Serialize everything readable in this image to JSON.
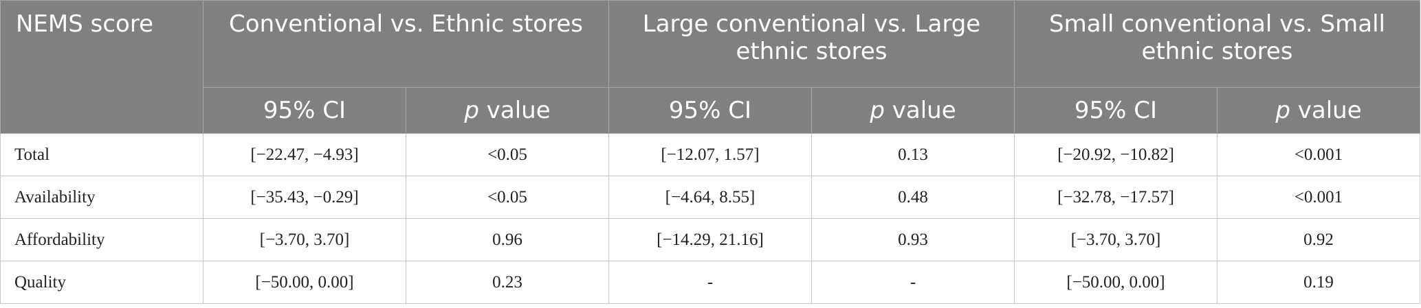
{
  "header": {
    "corner": "NEMS score",
    "groups": [
      "Conventional vs. Ethnic stores",
      "Large conventional vs. Large ethnic stores",
      "Small conventional vs. Small ethnic stores"
    ],
    "subheaders": [
      {
        "text": "95% CI"
      },
      {
        "em": "p",
        "text": "value"
      }
    ]
  },
  "table": {
    "rows": [
      [
        "Total",
        "[−22.47, −4.93]",
        "<0.05",
        "[−12.07, 1.57]",
        "0.13",
        "[−20.92, −10.82]",
        "<0.001"
      ],
      [
        "Availability",
        "[−35.43, −0.29]",
        "<0.05",
        "[−4.64, 8.55]",
        "0.48",
        "[−32.78, −17.57]",
        "<0.001"
      ],
      [
        "Affordability",
        "[−3.70, 3.70]",
        "0.96",
        "[−14.29, 21.16]",
        "0.93",
        "[−3.70, 3.70]",
        "0.92"
      ],
      [
        "Quality",
        "[−50.00, 0.00]",
        "0.23",
        "-",
        "-",
        "[−50.00, 0.00]",
        "0.19"
      ]
    ]
  }
}
